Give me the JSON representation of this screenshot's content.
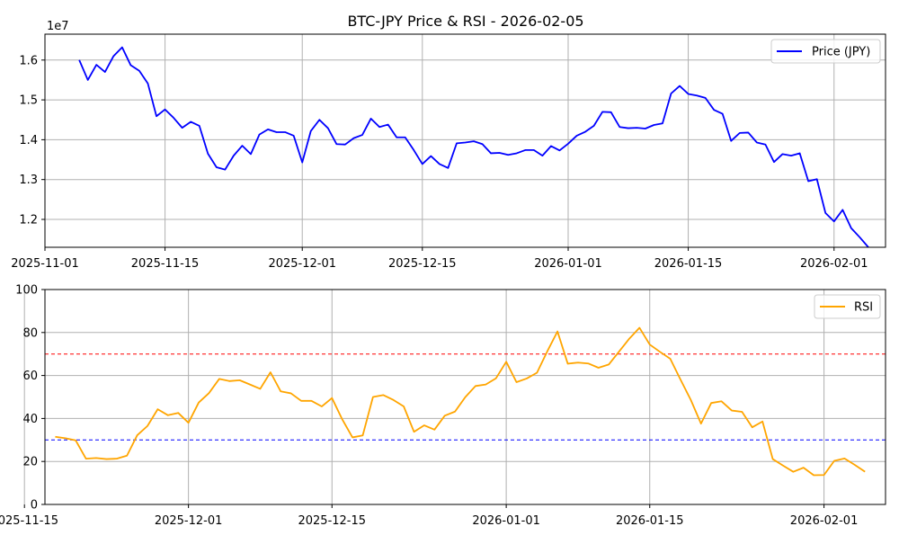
{
  "chart_data": [
    {
      "type": "line",
      "title": "BTC-JPY Price & RSI - 2026-02-05",
      "xlabel": "",
      "ylabel": "",
      "y_scale_label": "1e7",
      "xlim": [
        "2025-11-01",
        "2026-02-07"
      ],
      "ylim": [
        1.13,
        1.665
      ],
      "y_ticks": [
        1.2,
        1.3,
        1.4,
        1.5,
        1.6
      ],
      "y_tick_labels": [
        "1.2",
        "1.3",
        "1.4",
        "1.5",
        "1.6"
      ],
      "x_ticks": [
        "2025-11-01",
        "2025-11-15",
        "2025-12-01",
        "2025-12-15",
        "2026-01-01",
        "2026-01-15",
        "2026-02-01"
      ],
      "grid": true,
      "legend_position": "upper right",
      "series": [
        {
          "name": "Price (JPY)",
          "color": "#0000ff",
          "x": [
            "2025-11-05",
            "2025-11-06",
            "2025-11-07",
            "2025-11-08",
            "2025-11-09",
            "2025-11-10",
            "2025-11-11",
            "2025-11-12",
            "2025-11-13",
            "2025-11-14",
            "2025-11-15",
            "2025-11-16",
            "2025-11-17",
            "2025-11-18",
            "2025-11-19",
            "2025-11-20",
            "2025-11-21",
            "2025-11-22",
            "2025-11-23",
            "2025-11-24",
            "2025-11-25",
            "2025-11-26",
            "2025-11-27",
            "2025-11-28",
            "2025-11-29",
            "2025-11-30",
            "2025-12-01",
            "2025-12-02",
            "2025-12-03",
            "2025-12-04",
            "2025-12-05",
            "2025-12-06",
            "2025-12-07",
            "2025-12-08",
            "2025-12-09",
            "2025-12-10",
            "2025-12-11",
            "2025-12-12",
            "2025-12-13",
            "2025-12-14",
            "2025-12-15",
            "2025-12-16",
            "2025-12-17",
            "2025-12-18",
            "2025-12-19",
            "2025-12-20",
            "2025-12-21",
            "2025-12-22",
            "2025-12-23",
            "2025-12-24",
            "2025-12-25",
            "2025-12-26",
            "2025-12-27",
            "2025-12-28",
            "2025-12-29",
            "2025-12-30",
            "2025-12-31",
            "2026-01-01",
            "2026-01-02",
            "2026-01-03",
            "2026-01-04",
            "2026-01-05",
            "2026-01-06",
            "2026-01-07",
            "2026-01-08",
            "2026-01-09",
            "2026-01-10",
            "2026-01-11",
            "2026-01-12",
            "2026-01-13",
            "2026-01-14",
            "2026-01-15",
            "2026-01-16",
            "2026-01-17",
            "2026-01-18",
            "2026-01-19",
            "2026-01-20",
            "2026-01-21",
            "2026-01-22",
            "2026-01-23",
            "2026-01-24",
            "2026-01-25",
            "2026-01-26",
            "2026-01-27",
            "2026-01-28",
            "2026-01-29",
            "2026-01-30",
            "2026-01-31",
            "2026-02-01",
            "2026-02-02",
            "2026-02-03",
            "2026-02-04",
            "2026-02-05"
          ],
          "values": [
            1.6,
            1.55,
            1.588,
            1.57,
            1.61,
            1.632,
            1.587,
            1.573,
            1.541,
            1.459,
            1.476,
            1.455,
            1.43,
            1.445,
            1.435,
            1.365,
            1.331,
            1.325,
            1.36,
            1.385,
            1.364,
            1.413,
            1.426,
            1.419,
            1.419,
            1.41,
            1.343,
            1.422,
            1.45,
            1.429,
            1.389,
            1.388,
            1.404,
            1.412,
            1.453,
            1.432,
            1.438,
            1.406,
            1.406,
            1.374,
            1.339,
            1.359,
            1.339,
            1.329,
            1.391,
            1.393,
            1.396,
            1.389,
            1.366,
            1.367,
            1.362,
            1.366,
            1.374,
            1.374,
            1.36,
            1.384,
            1.373,
            1.39,
            1.41,
            1.42,
            1.435,
            1.47,
            1.469,
            1.432,
            1.429,
            1.43,
            1.428,
            1.437,
            1.441,
            1.516,
            1.535,
            1.515,
            1.511,
            1.505,
            1.475,
            1.465,
            1.397,
            1.417,
            1.418,
            1.393,
            1.388,
            1.344,
            1.364,
            1.36,
            1.366,
            1.296,
            1.301,
            1.216,
            1.195,
            1.224,
            1.178,
            1.155,
            1.13
          ]
        }
      ]
    },
    {
      "type": "line",
      "title": "",
      "xlabel": "",
      "ylabel": "",
      "xlim": [
        "2025-11-17",
        "2026-02-07"
      ],
      "ylim": [
        0,
        100
      ],
      "y_ticks": [
        0,
        20,
        40,
        60,
        80,
        100
      ],
      "y_tick_labels": [
        "0",
        "20",
        "40",
        "60",
        "80",
        "100"
      ],
      "x_ticks": [
        "2025-11-15",
        "2025-12-01",
        "2025-12-15",
        "2026-01-01",
        "2026-01-15",
        "2026-02-01"
      ],
      "grid": true,
      "legend_position": "upper right",
      "reference_lines": [
        {
          "y": 70,
          "color": "#ff0000",
          "style": "dashed"
        },
        {
          "y": 30,
          "color": "#0000ff",
          "style": "dashed"
        }
      ],
      "series": [
        {
          "name": "RSI",
          "color": "#ffa500",
          "x": [
            "2025-11-18",
            "2025-11-19",
            "2025-11-20",
            "2025-11-21",
            "2025-11-22",
            "2025-11-23",
            "2025-11-24",
            "2025-11-25",
            "2025-11-26",
            "2025-11-27",
            "2025-11-28",
            "2025-11-29",
            "2025-11-30",
            "2025-12-01",
            "2025-12-02",
            "2025-12-03",
            "2025-12-04",
            "2025-12-05",
            "2025-12-06",
            "2025-12-07",
            "2025-12-08",
            "2025-12-09",
            "2025-12-10",
            "2025-12-11",
            "2025-12-12",
            "2025-12-13",
            "2025-12-14",
            "2025-12-15",
            "2025-12-16",
            "2025-12-17",
            "2025-12-18",
            "2025-12-19",
            "2025-12-20",
            "2025-12-21",
            "2025-12-22",
            "2025-12-23",
            "2025-12-24",
            "2025-12-25",
            "2025-12-26",
            "2025-12-27",
            "2025-12-28",
            "2025-12-29",
            "2025-12-30",
            "2025-12-31",
            "2026-01-01",
            "2026-01-02",
            "2026-01-03",
            "2026-01-04",
            "2026-01-05",
            "2026-01-06",
            "2026-01-07",
            "2026-01-08",
            "2026-01-09",
            "2026-01-10",
            "2026-01-11",
            "2026-01-12",
            "2026-01-13",
            "2026-01-14",
            "2026-01-15",
            "2026-01-16",
            "2026-01-17",
            "2026-01-18",
            "2026-01-19",
            "2026-01-20",
            "2026-01-21",
            "2026-01-22",
            "2026-01-23",
            "2026-01-24",
            "2026-01-25",
            "2026-01-26",
            "2026-01-27",
            "2026-01-28",
            "2026-01-29",
            "2026-01-30",
            "2026-01-31",
            "2026-02-01",
            "2026-02-02",
            "2026-02-03",
            "2026-02-04",
            "2026-02-05"
          ],
          "values": [
            31.5,
            30.8,
            29.8,
            21.3,
            21.6,
            21.1,
            21.3,
            22.7,
            32.2,
            36.5,
            44.3,
            41.5,
            42.6,
            38.0,
            47.4,
            51.8,
            58.4,
            57.4,
            57.8,
            55.8,
            53.8,
            61.5,
            52.6,
            51.7,
            48.2,
            48.2,
            45.6,
            49.5,
            39.6,
            31.2,
            32.1,
            50.0,
            50.9,
            48.6,
            45.6,
            33.8,
            36.8,
            34.8,
            41.3,
            43.2,
            49.9,
            55.1,
            55.8,
            58.7,
            66.4,
            56.9,
            58.6,
            61.3,
            71.2,
            80.5,
            65.5,
            66.0,
            65.6,
            63.6,
            65.1,
            71.1,
            77.1,
            82.2,
            74.4,
            71.0,
            67.8,
            58.1,
            48.7,
            37.6,
            47.2,
            48.0,
            43.7,
            43.1,
            35.9,
            38.6,
            21.1,
            18.1,
            15.2,
            17.1,
            13.6,
            13.7,
            20.3,
            21.4,
            18.4,
            15.2
          ]
        }
      ]
    }
  ]
}
